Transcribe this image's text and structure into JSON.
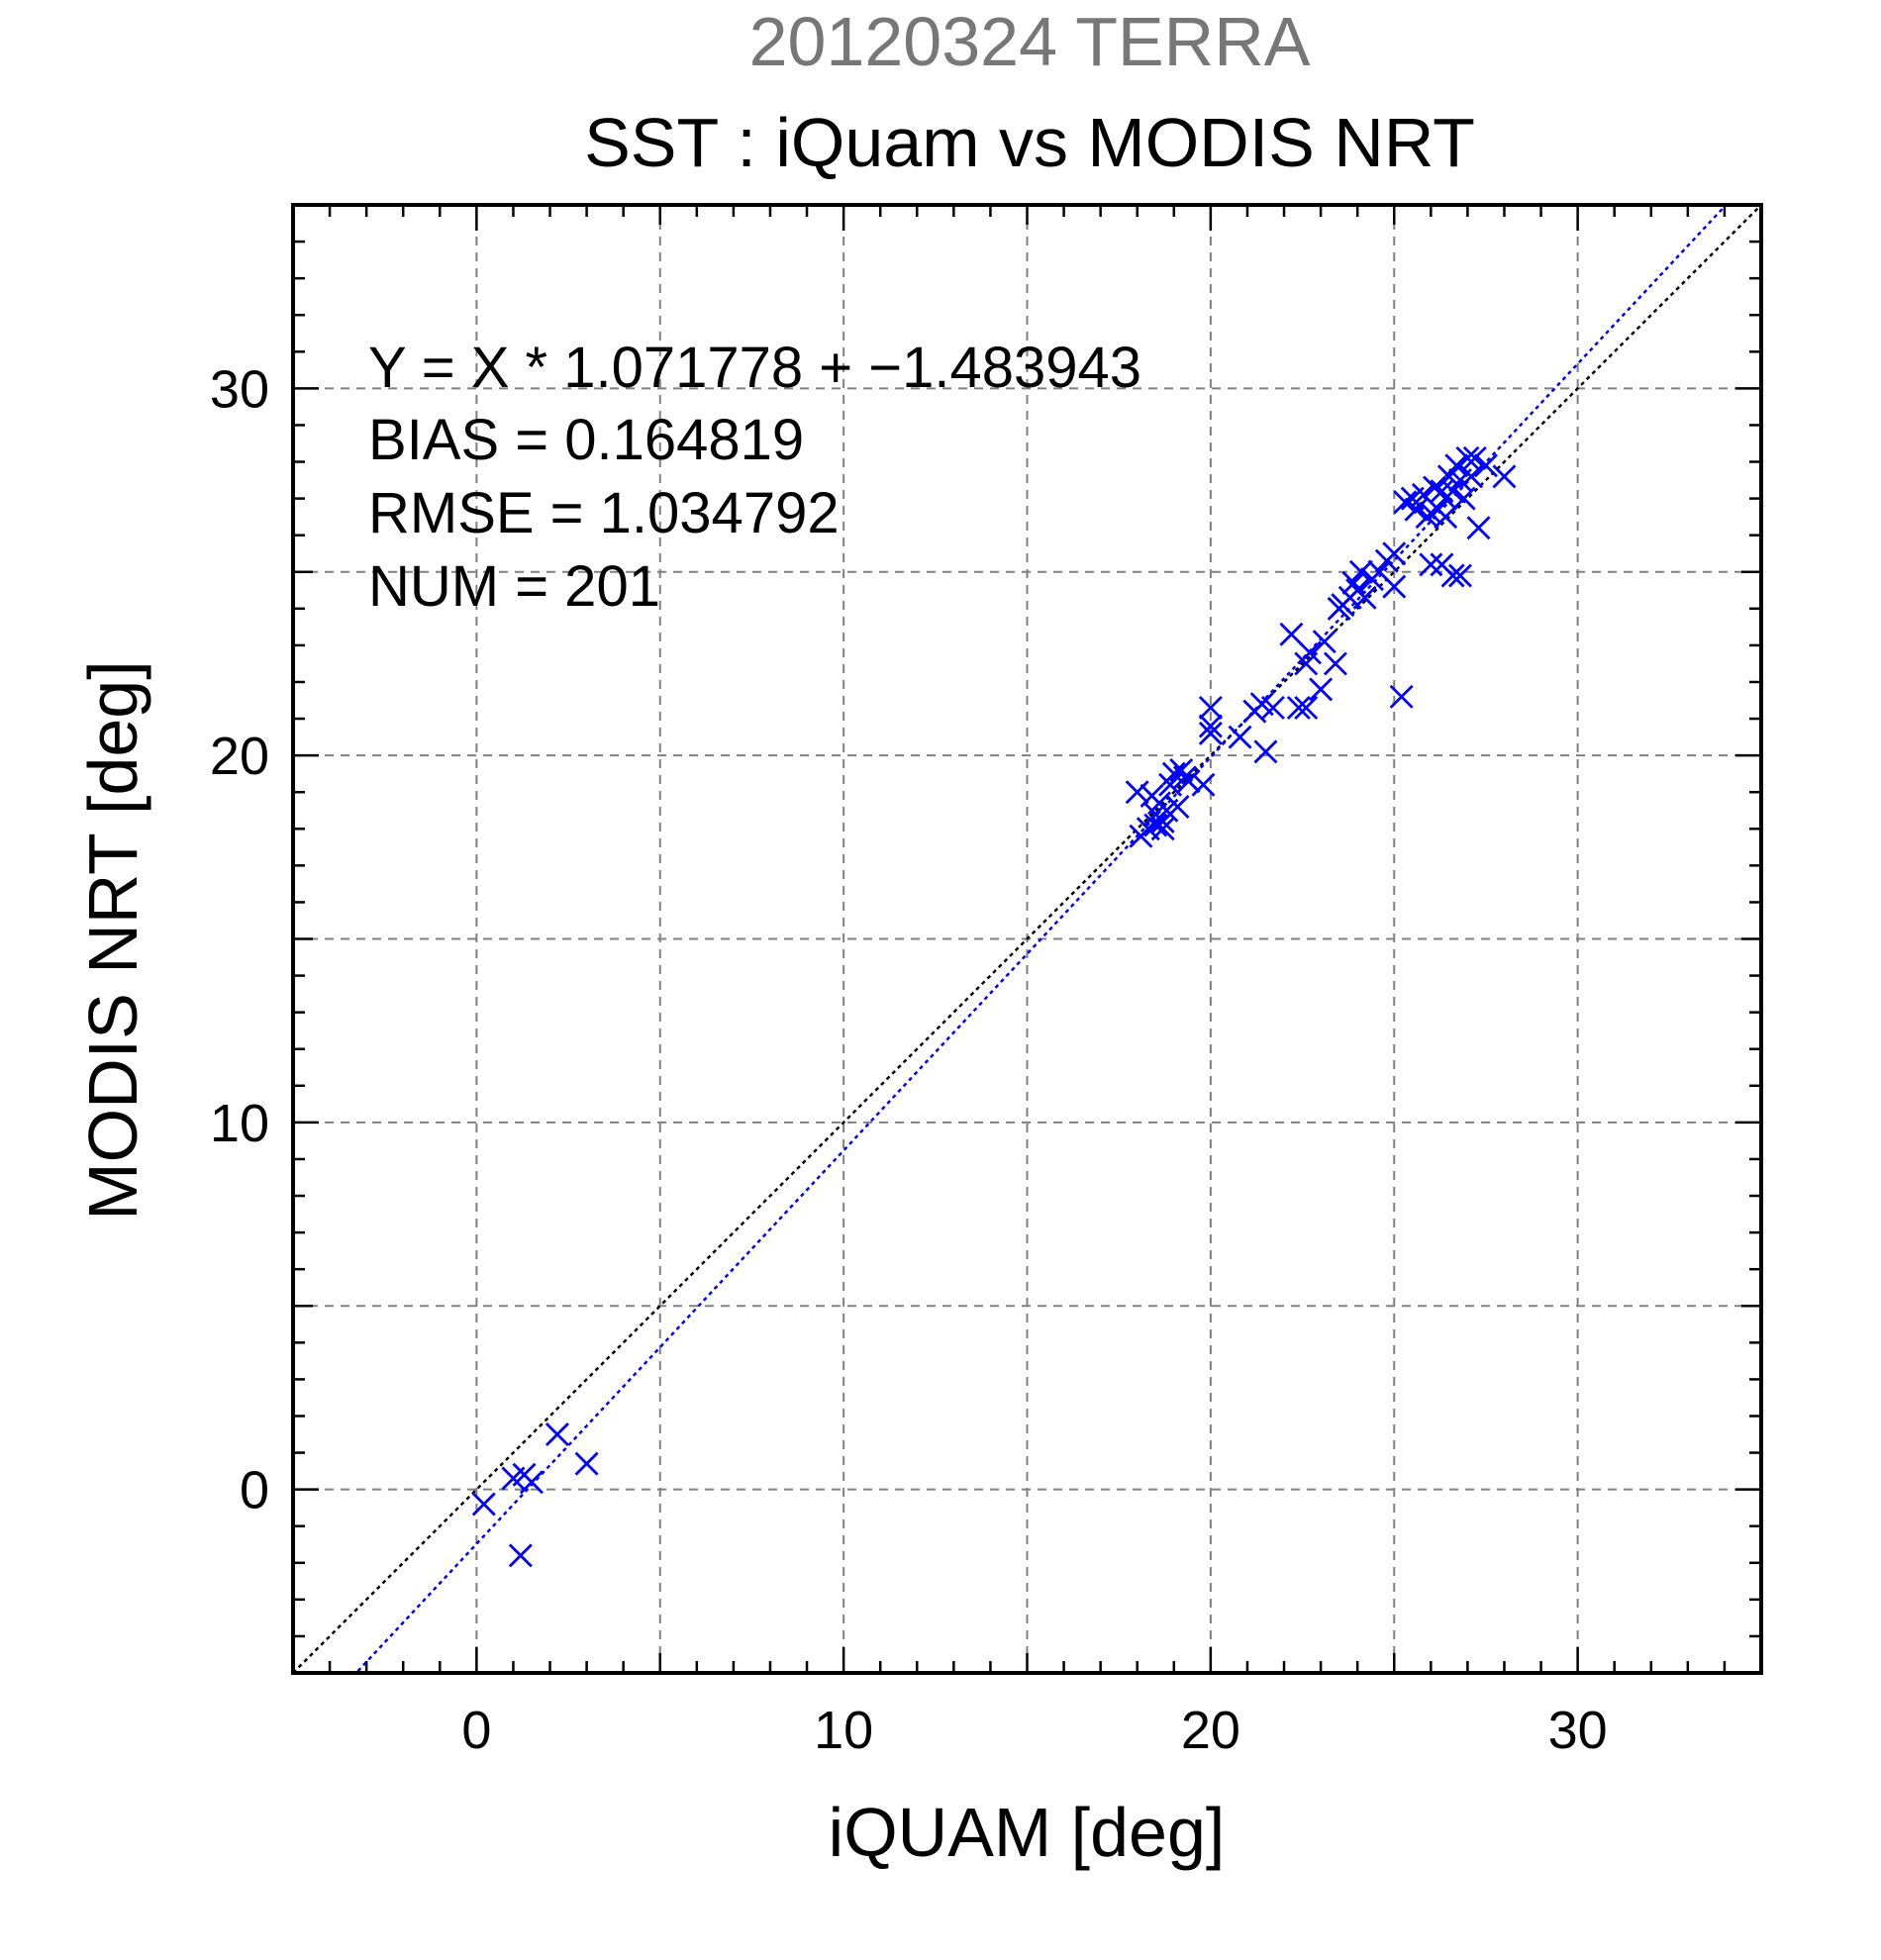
{
  "chart_data": {
    "type": "scatter",
    "subtitle": "20120324 TERRA",
    "title": "SST : iQuam vs MODIS NRT",
    "xlabel": "iQUAM [deg]",
    "ylabel": "MODIS NRT [deg]",
    "xlim": [
      -5,
      35
    ],
    "ylim": [
      -5,
      35
    ],
    "x_ticks": [
      0,
      10,
      20,
      30
    ],
    "y_ticks": [
      0,
      10,
      20,
      30
    ],
    "grid": true,
    "stats": {
      "equation": "Y = X * 1.071778 + −1.483943",
      "bias": "BIAS = 0.164819",
      "rmse": "RMSE = 1.034792",
      "num": "NUM = 201"
    },
    "lines": [
      {
        "kind": "identity",
        "slope": 1,
        "intercept": 0,
        "color": "#000000"
      },
      {
        "kind": "regression",
        "slope": 1.071778,
        "intercept": -1.483943,
        "color": "#0000ff"
      }
    ],
    "series": [
      {
        "marker": "x",
        "color": "#0000ff",
        "points": [
          [
            0.2,
            -0.4
          ],
          [
            1.0,
            0.3
          ],
          [
            1.3,
            0.4
          ],
          [
            1.5,
            0.2
          ],
          [
            2.2,
            1.5
          ],
          [
            3.0,
            0.7
          ],
          [
            1.2,
            -1.8
          ],
          [
            18.0,
            19.0
          ],
          [
            18.1,
            17.8
          ],
          [
            18.3,
            18.0
          ],
          [
            18.4,
            18.9
          ],
          [
            18.5,
            18.4
          ],
          [
            18.6,
            18.7
          ],
          [
            18.7,
            18.2
          ],
          [
            18.8,
            18.5
          ],
          [
            18.9,
            19.2
          ],
          [
            19.0,
            19.5
          ],
          [
            19.1,
            18.6
          ],
          [
            19.2,
            19.6
          ],
          [
            19.3,
            19.4
          ],
          [
            18.7,
            18.0
          ],
          [
            18.5,
            18.1
          ],
          [
            19.4,
            19.3
          ],
          [
            19.8,
            19.2
          ],
          [
            20.0,
            20.8
          ],
          [
            20.0,
            21.3
          ],
          [
            20.0,
            20.6
          ],
          [
            20.8,
            20.5
          ],
          [
            21.2,
            21.2
          ],
          [
            21.4,
            21.4
          ],
          [
            21.5,
            20.1
          ],
          [
            21.7,
            21.3
          ],
          [
            22.2,
            23.3
          ],
          [
            22.4,
            21.3
          ],
          [
            22.6,
            21.3
          ],
          [
            22.6,
            22.5
          ],
          [
            22.7,
            22.8
          ],
          [
            23.0,
            21.8
          ],
          [
            23.1,
            23.1
          ],
          [
            23.4,
            22.5
          ],
          [
            23.5,
            24.0
          ],
          [
            23.6,
            24.1
          ],
          [
            23.8,
            24.3
          ],
          [
            23.9,
            24.7
          ],
          [
            24.0,
            24.5
          ],
          [
            24.1,
            25.0
          ],
          [
            24.2,
            24.3
          ],
          [
            24.4,
            24.8
          ],
          [
            24.6,
            25.0
          ],
          [
            24.8,
            25.3
          ],
          [
            25.0,
            25.5
          ],
          [
            25.0,
            24.6
          ],
          [
            25.2,
            21.6
          ],
          [
            25.3,
            26.9
          ],
          [
            25.5,
            27.0
          ],
          [
            25.6,
            26.7
          ],
          [
            25.8,
            27.1
          ],
          [
            26.0,
            26.6
          ],
          [
            26.0,
            25.2
          ],
          [
            26.1,
            27.3
          ],
          [
            26.2,
            26.7
          ],
          [
            26.3,
            27.2
          ],
          [
            26.4,
            27.0
          ],
          [
            26.5,
            27.6
          ],
          [
            26.6,
            27.2
          ],
          [
            26.6,
            24.9
          ],
          [
            26.7,
            27.9
          ],
          [
            26.8,
            27.5
          ],
          [
            26.9,
            27.0
          ],
          [
            27.0,
            28.1
          ],
          [
            27.1,
            27.6
          ],
          [
            27.2,
            28.1
          ],
          [
            27.3,
            26.2
          ],
          [
            27.5,
            27.9
          ],
          [
            28.0,
            27.6
          ],
          [
            26.3,
            25.2
          ],
          [
            26.8,
            24.9
          ],
          [
            25.9,
            26.5
          ],
          [
            26.4,
            26.5
          ]
        ]
      }
    ]
  }
}
